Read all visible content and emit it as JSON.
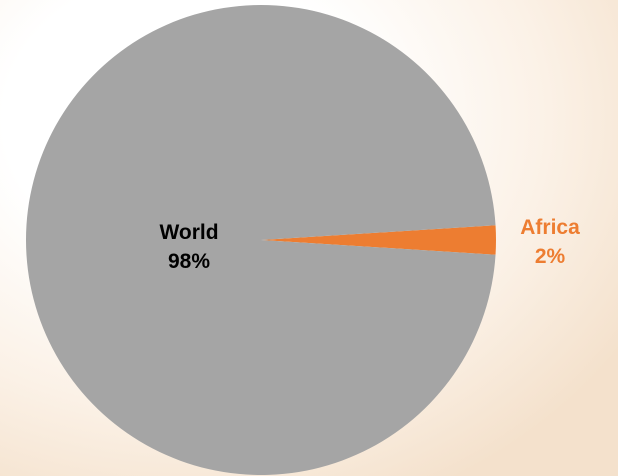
{
  "chart_data": {
    "type": "pie",
    "title": "",
    "slices": [
      {
        "label": "Africa",
        "value": 2,
        "value_label": "2%",
        "color": "#ed7d31",
        "label_color": "#ed7d31"
      },
      {
        "label": "World",
        "value": 98,
        "value_label": "98%",
        "color": "#a5a5a5",
        "label_color": "#000000"
      }
    ],
    "legend": "none"
  }
}
